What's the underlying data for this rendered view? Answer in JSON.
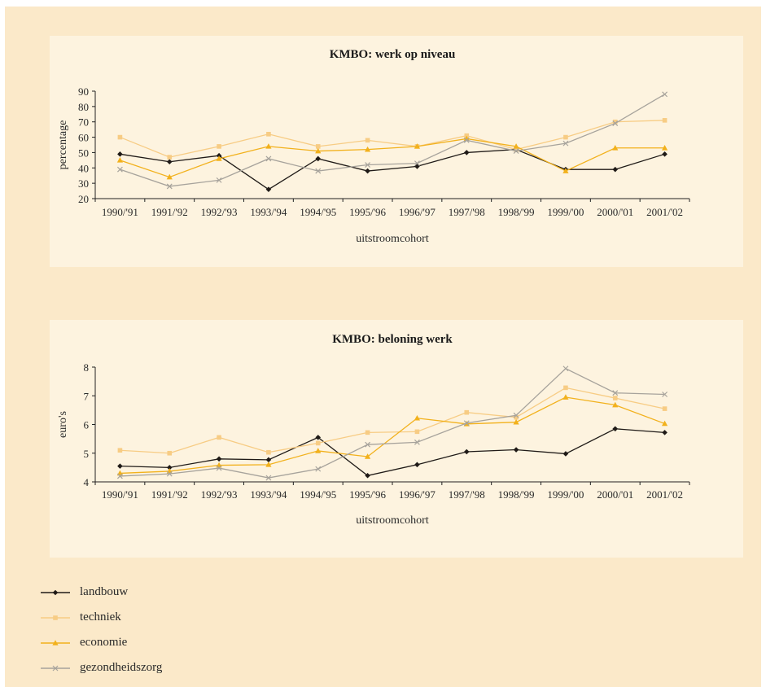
{
  "colors": {
    "landbouw": "#1f1a17",
    "techniek": "#f7cc84",
    "economie": "#f2b11c",
    "gezondheidszorg": "#a7a39c"
  },
  "legend": [
    {
      "name": "landbouw",
      "marker": "diamond"
    },
    {
      "name": "techniek",
      "marker": "square"
    },
    {
      "name": "economie",
      "marker": "triangle"
    },
    {
      "name": "gezondheidszorg",
      "marker": "x"
    }
  ],
  "chart_data": [
    {
      "type": "line",
      "title": "KMBO: werk op niveau",
      "xlabel": "uitstroomcohort",
      "ylabel": "percentage",
      "ylim": [
        20,
        90
      ],
      "yticks": [
        20,
        30,
        40,
        50,
        60,
        70,
        80,
        90
      ],
      "grid": false,
      "categories": [
        "1990/'91",
        "1991/'92",
        "1992/'93",
        "1993/'94",
        "1994/'95",
        "1995/'96",
        "1996/'97",
        "1997/'98",
        "1998/'99",
        "1999/'00",
        "2000/'01",
        "2001/'02"
      ],
      "series": [
        {
          "name": "landbouw",
          "values": [
            49,
            44,
            48,
            26,
            46,
            38,
            41,
            50,
            52,
            39,
            39,
            49
          ]
        },
        {
          "name": "techniek",
          "values": [
            60,
            47,
            54,
            62,
            54,
            58,
            54,
            61,
            52,
            60,
            70,
            71
          ]
        },
        {
          "name": "economie",
          "values": [
            45,
            34,
            46,
            54,
            51,
            52,
            54,
            59,
            54,
            38,
            53,
            53
          ]
        },
        {
          "name": "gezondheidszorg",
          "values": [
            39,
            28,
            32,
            46,
            38,
            42,
            43,
            58,
            51,
            56,
            69,
            88
          ]
        }
      ]
    },
    {
      "type": "line",
      "title": "KMBO: beloning werk",
      "xlabel": "uitstroomcohort",
      "ylabel": "euro's",
      "ylim": [
        4,
        8
      ],
      "yticks": [
        4,
        5,
        6,
        7,
        8
      ],
      "grid": false,
      "categories": [
        "1990/'91",
        "1991/'92",
        "1992/'93",
        "1993/'94",
        "1994/'95",
        "1995/'96",
        "1996/'97",
        "1997/'98",
        "1998/'99",
        "1999/'00",
        "2000/'01",
        "2001/'02"
      ],
      "series": [
        {
          "name": "landbouw",
          "values": [
            4.55,
            4.5,
            4.8,
            4.77,
            5.55,
            4.22,
            4.6,
            5.05,
            5.12,
            4.98,
            5.85,
            5.72
          ]
        },
        {
          "name": "techniek",
          "values": [
            5.1,
            5.0,
            5.55,
            5.03,
            5.35,
            5.72,
            5.75,
            6.42,
            6.25,
            7.28,
            6.92,
            6.55
          ]
        },
        {
          "name": "economie",
          "values": [
            4.3,
            4.37,
            4.58,
            4.6,
            5.08,
            4.88,
            6.22,
            6.02,
            6.08,
            6.95,
            6.68,
            6.03
          ]
        },
        {
          "name": "gezondheidszorg",
          "values": [
            4.2,
            4.28,
            4.48,
            4.14,
            4.45,
            5.3,
            5.38,
            6.05,
            6.32,
            7.95,
            7.1,
            7.05
          ]
        }
      ]
    }
  ]
}
